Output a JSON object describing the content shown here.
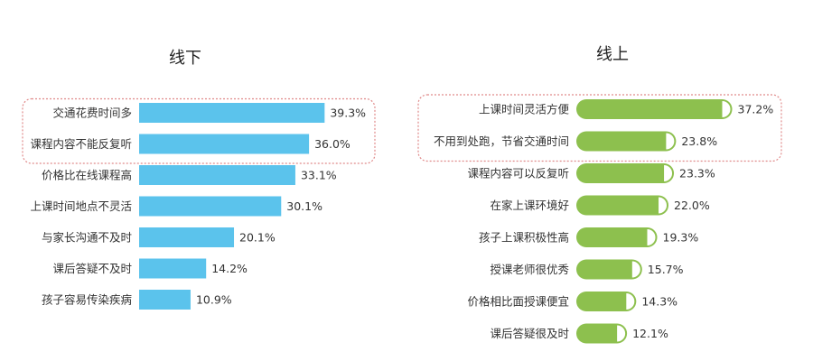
{
  "colors": {
    "offline_bar": "#5BC3EC",
    "online_bar": "#8DC04E",
    "highlight_border": "#E08A8A"
  },
  "chart_data": [
    {
      "type": "bar",
      "orientation": "horizontal",
      "title": "线下",
      "categories": [
        "交通花费时间多",
        "课程内容不能反复听",
        "价格比在线课程高",
        "上课时间地点不灵活",
        "与家长沟通不及时",
        "课后答疑不及时",
        "孩子容易传染疾病"
      ],
      "values": [
        39.3,
        36.0,
        33.1,
        30.1,
        20.1,
        14.2,
        10.9
      ],
      "value_labels": [
        "39.3%",
        "36.0%",
        "33.1%",
        "30.1%",
        "20.1%",
        "14.2%",
        "10.9%"
      ],
      "unit": "%",
      "highlighted_count": 2,
      "xlim": [
        0,
        40
      ],
      "grid": false,
      "legend": "none"
    },
    {
      "type": "bar",
      "orientation": "horizontal",
      "title": "线上",
      "categories": [
        "上课时间灵活方便",
        "不用到处跑，节省交通时间",
        "课程内容可以反复听",
        "在家上课环境好",
        "孩子上课积极性高",
        "授课老师很优秀",
        "价格相比面授课便宜",
        "课后答疑很及时"
      ],
      "values": [
        37.2,
        23.8,
        23.3,
        22.0,
        19.3,
        15.7,
        14.3,
        12.1
      ],
      "value_labels": [
        "37.2%",
        "23.8%",
        "23.3%",
        "22.0%",
        "19.3%",
        "15.7%",
        "14.3%",
        "12.1%"
      ],
      "unit": "%",
      "highlighted_count": 2,
      "xlim": [
        0,
        40
      ],
      "grid": false,
      "legend": "none"
    }
  ]
}
